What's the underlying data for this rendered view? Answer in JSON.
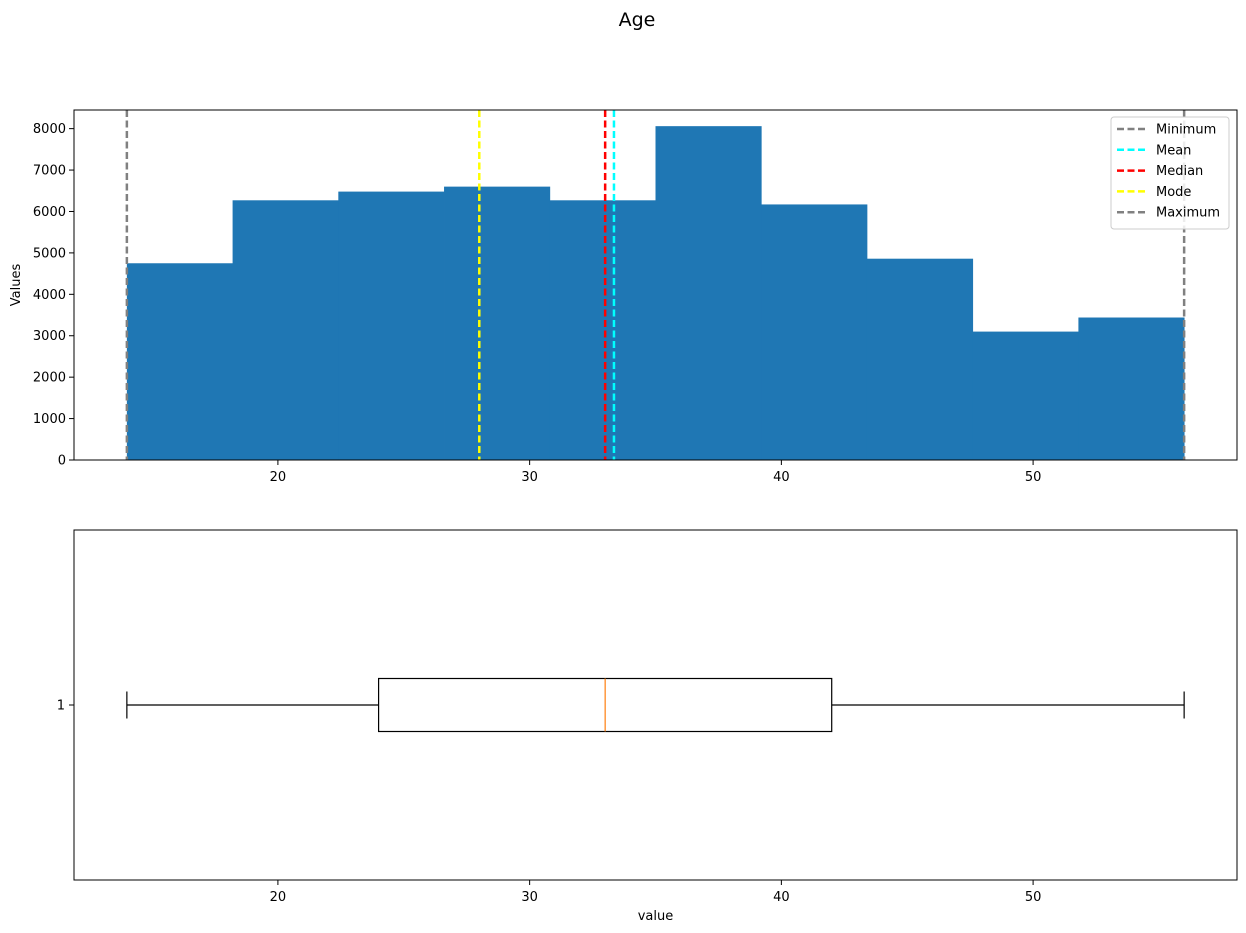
{
  "chart_data": [
    {
      "type": "bar",
      "panel": "histogram",
      "suptitle": "Age",
      "ylabel": "Values",
      "xlabel": "",
      "xlim": [
        11.9,
        58.1
      ],
      "ylim": [
        0,
        8450
      ],
      "xticks": [
        20,
        30,
        40,
        50
      ],
      "yticks": [
        0,
        1000,
        2000,
        3000,
        4000,
        5000,
        6000,
        7000,
        8000
      ],
      "bin_edges": [
        14,
        18.2,
        22.4,
        26.6,
        30.8,
        35,
        39.2,
        43.4,
        47.6,
        51.8,
        56
      ],
      "values": [
        4750,
        6270,
        6480,
        6600,
        6270,
        8060,
        6170,
        4860,
        3100,
        3440
      ],
      "bar_color": "#1f77b4",
      "lines": [
        {
          "name": "Minimum",
          "x": 14,
          "color": "#808080"
        },
        {
          "name": "Mean",
          "x": 33.35,
          "color": "#00ffff"
        },
        {
          "name": "Median",
          "x": 33,
          "color": "#ff0000"
        },
        {
          "name": "Mode",
          "x": 28,
          "color": "#ffff00"
        },
        {
          "name": "Maximum",
          "x": 56,
          "color": "#808080"
        }
      ],
      "legend_position": "top-right",
      "grid": false
    },
    {
      "type": "box",
      "panel": "boxplot",
      "xlabel": "value",
      "xlim": [
        11.9,
        58.1
      ],
      "xticks": [
        20,
        30,
        40,
        50
      ],
      "yticks": [
        "1"
      ],
      "box": {
        "whisker_low": 14,
        "q1": 24,
        "median": 33,
        "q3": 42,
        "whisker_high": 56
      },
      "median_color": "#ff7f0e",
      "grid": false
    }
  ]
}
